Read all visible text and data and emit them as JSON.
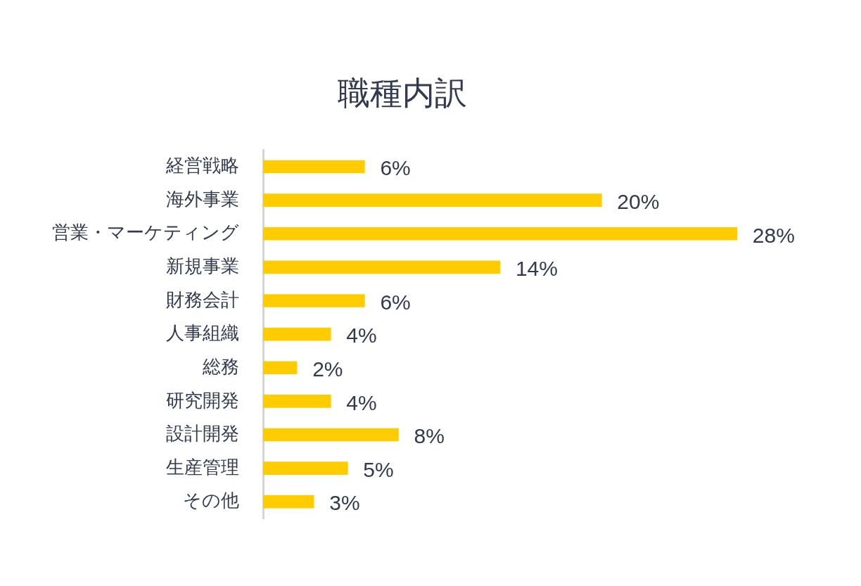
{
  "chart_data": {
    "type": "bar",
    "title": "職種内訳",
    "orientation": "horizontal",
    "categories": [
      "経営戦略",
      "海外事業",
      "営業・マーケティング",
      "新規事業",
      "財務会計",
      "人事組織",
      "総務",
      "研究開発",
      "設計開発",
      "生産管理",
      "その他"
    ],
    "values": [
      6,
      20,
      28,
      14,
      6,
      4,
      2,
      4,
      8,
      5,
      3
    ],
    "value_labels": [
      "6%",
      "20%",
      "28%",
      "14%",
      "6%",
      "4%",
      "2%",
      "4%",
      "8%",
      "5%",
      "3%"
    ],
    "color": "#ffcc00",
    "grid": false,
    "legend": false
  }
}
